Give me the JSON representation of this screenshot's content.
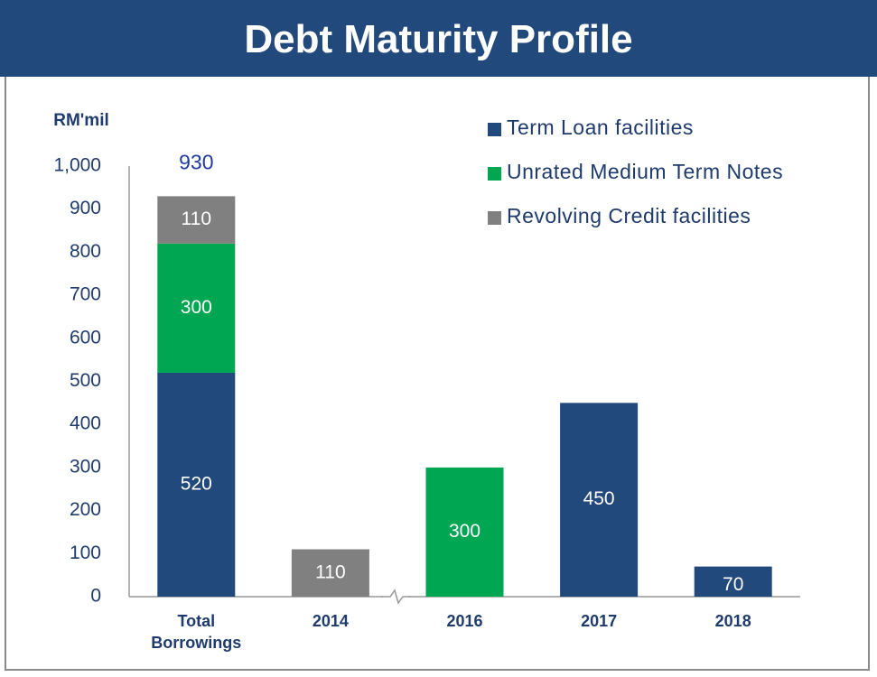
{
  "chart_data": {
    "type": "bar",
    "stacked": true,
    "title": "Debt Maturity Profile",
    "y_axis_label": "RM'mil",
    "categories": [
      "Total Borrowings",
      "2014",
      "2016",
      "2017",
      "2018"
    ],
    "series": [
      {
        "name": "Term Loan facilities",
        "color": "#22497c",
        "values": [
          520,
          null,
          null,
          450,
          70
        ]
      },
      {
        "name": "Unrated Medium Term Notes",
        "color": "#00a651",
        "values": [
          300,
          null,
          300,
          null,
          null
        ]
      },
      {
        "name": "Revolving Credit facilities",
        "color": "#808080",
        "values": [
          110,
          110,
          null,
          null,
          null
        ]
      }
    ],
    "totals": [
      930,
      null,
      null,
      null,
      null
    ],
    "ylim": [
      0,
      1000
    ],
    "yticks": [
      0,
      100,
      200,
      300,
      400,
      500,
      600,
      700,
      800,
      900,
      {
        "value": 1000,
        "label": "1,000"
      }
    ],
    "grid": false,
    "legend_position": "top-right"
  }
}
